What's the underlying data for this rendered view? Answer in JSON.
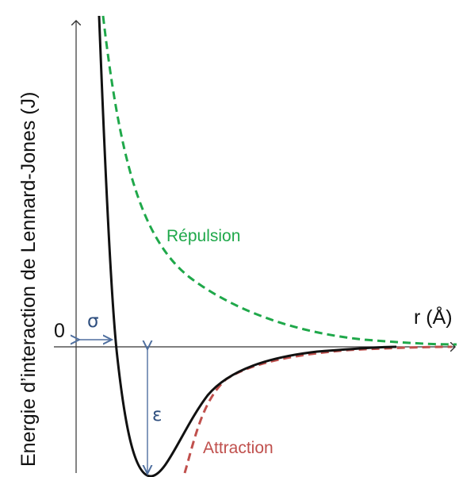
{
  "diagram": {
    "ylabel": "Energie d’interaction de Lennard-Jones (J)",
    "xlabel": "r (Å)",
    "origin_label": "0",
    "sigma_label": "σ",
    "epsilon_label": "ε",
    "repulsion_label": "Répulsion",
    "attraction_label": "Attraction",
    "colors": {
      "axis": "#333333",
      "potential": "#111111",
      "repulsion": "#1fa84a",
      "attraction": "#c0504d",
      "annotation": "#4f6f9f"
    }
  }
}
